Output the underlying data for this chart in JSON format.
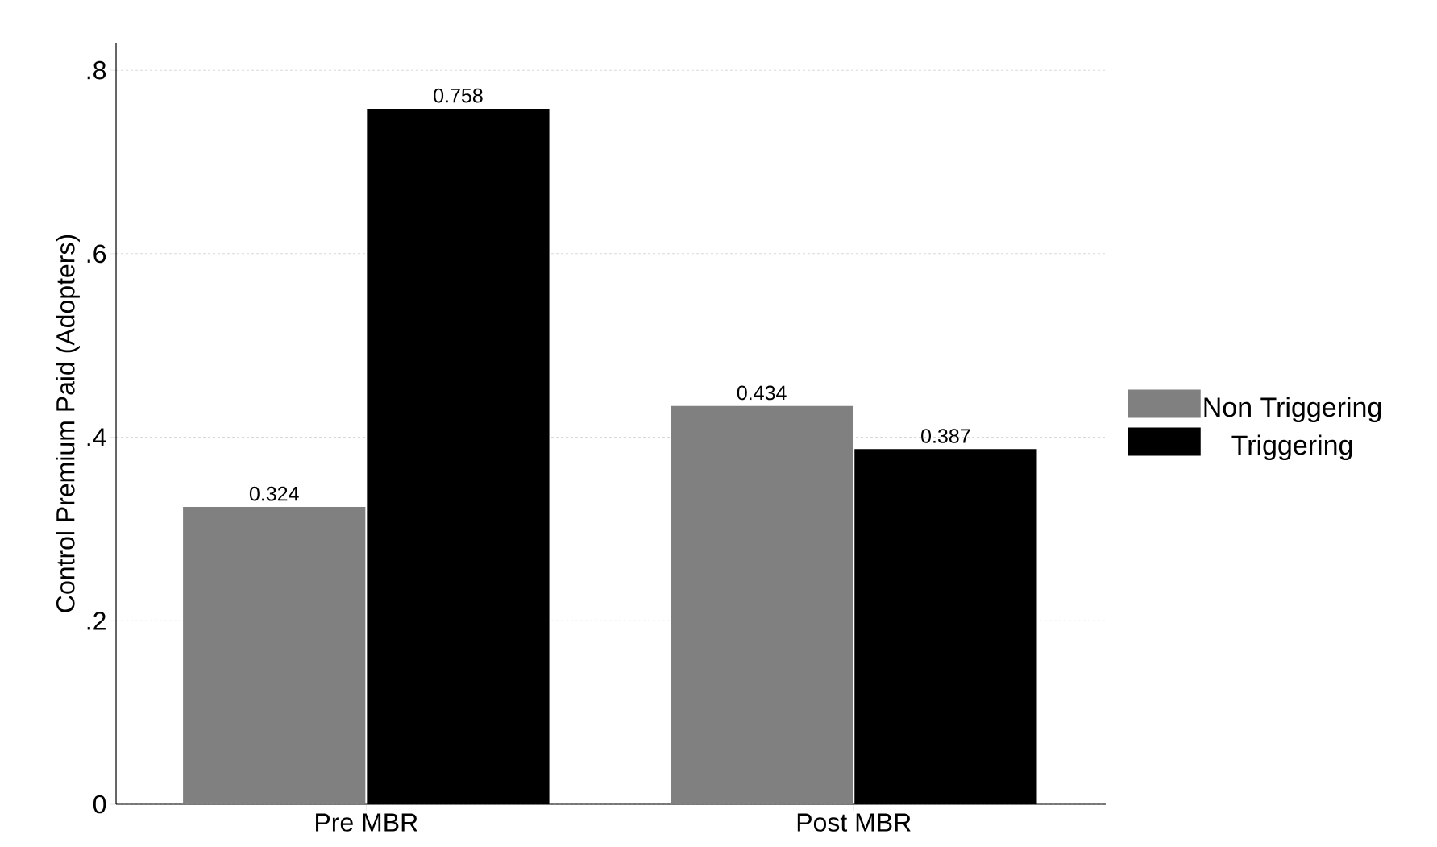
{
  "chart_data": {
    "type": "bar",
    "ylabel": "Control Premium Paid (Adopters)",
    "categories": [
      "Pre MBR",
      "Post MBR"
    ],
    "series": [
      {
        "name": "Non Triggering",
        "color": "#808080",
        "values": [
          0.324,
          0.434
        ]
      },
      {
        "name": "Triggering",
        "color": "#000000",
        "values": [
          0.758,
          0.387
        ]
      }
    ],
    "ylim": [
      0,
      0.83
    ],
    "yticks": [
      0,
      {
        "value": 0.2,
        "label": ".2"
      },
      {
        "value": 0.4,
        "label": ".4"
      },
      {
        "value": 0.6,
        "label": ".6"
      },
      {
        "value": 0.8,
        "label": ".8"
      }
    ],
    "grid": "y",
    "legend": "right",
    "data_labels": true
  }
}
